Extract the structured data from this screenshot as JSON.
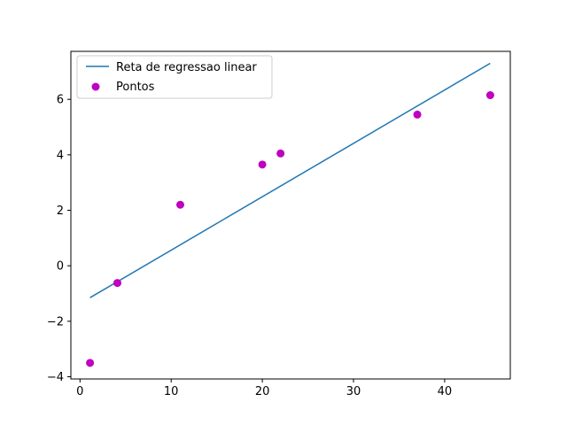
{
  "chart_data": {
    "type": "scatter",
    "title": "",
    "xlabel": "",
    "ylabel": "",
    "xlim": [
      -1.0,
      47.2
    ],
    "ylim": [
      -4.08,
      7.73
    ],
    "grid": false,
    "legend_placement": "top-left",
    "x_ticks": [
      {
        "value": 0,
        "label": "0"
      },
      {
        "value": 10,
        "label": "10"
      },
      {
        "value": 20,
        "label": "20"
      },
      {
        "value": 30,
        "label": "30"
      },
      {
        "value": 40,
        "label": "40"
      }
    ],
    "y_ticks": [
      {
        "value": -4,
        "label": "−4"
      },
      {
        "value": -2,
        "label": "−2"
      },
      {
        "value": 0,
        "label": "0"
      },
      {
        "value": 2,
        "label": "2"
      },
      {
        "value": 4,
        "label": "4"
      },
      {
        "value": 6,
        "label": "6"
      }
    ],
    "series": [
      {
        "name": "Reta de regressao linear",
        "kind": "line",
        "color": "#1f77b4",
        "x": [
          1.1,
          45.0
        ],
        "y": [
          -1.15,
          7.3
        ]
      },
      {
        "name": "Pontos",
        "kind": "scatter",
        "color": "#bf00bf",
        "x": [
          1.1,
          4.1,
          11.0,
          20.0,
          22.0,
          37.0,
          45.0
        ],
        "y": [
          -3.5,
          -0.62,
          2.2,
          3.65,
          4.05,
          5.45,
          6.15
        ]
      }
    ]
  }
}
